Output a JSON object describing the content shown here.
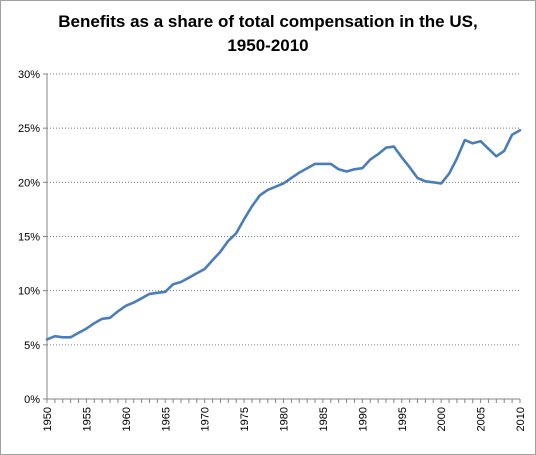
{
  "chart_data": {
    "type": "line",
    "title_lines": [
      "Benefits as a share of total compensation in the US,",
      "1950-2010"
    ],
    "xlabel": "",
    "ylabel": "",
    "xlim": [
      1950,
      2010
    ],
    "ylim": [
      0,
      30
    ],
    "y_ticks": [
      0,
      5,
      10,
      15,
      20,
      25,
      30
    ],
    "y_tick_labels": [
      "0%",
      "5%",
      "10%",
      "15%",
      "20%",
      "25%",
      "30%"
    ],
    "x_ticks": [
      1950,
      1955,
      1960,
      1965,
      1970,
      1975,
      1980,
      1985,
      1990,
      1995,
      2000,
      2005,
      2010
    ],
    "x_tick_labels": [
      "1950",
      "1955",
      "1960",
      "1965",
      "1970",
      "1975",
      "1980",
      "1985",
      "1990",
      "1995",
      "2000",
      "2005",
      "2010"
    ],
    "grid": "horizontal dotted",
    "legend": "none",
    "line_color": "#4a7ebb",
    "series": [
      {
        "x": [
          1950,
          1951,
          1952,
          1953,
          1954,
          1955,
          1956,
          1957,
          1958,
          1959,
          1960,
          1961,
          1962,
          1963,
          1964,
          1965,
          1966,
          1967,
          1968,
          1969,
          1970,
          1971,
          1972,
          1973,
          1974,
          1975,
          1976,
          1977,
          1978,
          1979,
          1980,
          1981,
          1982,
          1983,
          1984,
          1985,
          1986,
          1987,
          1988,
          1989,
          1990,
          1991,
          1992,
          1993,
          1994,
          1995,
          1996,
          1997,
          1998,
          1999,
          2000,
          2001,
          2002,
          2003,
          2004,
          2005,
          2006,
          2007,
          2008,
          2009,
          2010
        ],
        "y": [
          5.5,
          5.8,
          5.7,
          5.7,
          6.1,
          6.5,
          7.0,
          7.4,
          7.5,
          8.1,
          8.6,
          8.9,
          9.3,
          9.7,
          9.8,
          9.9,
          10.6,
          10.8,
          11.2,
          11.6,
          12.0,
          12.8,
          13.6,
          14.6,
          15.3,
          16.6,
          17.8,
          18.8,
          19.3,
          19.6,
          19.9,
          20.4,
          20.9,
          21.3,
          21.7,
          21.7,
          21.7,
          21.2,
          21.0,
          21.2,
          21.3,
          22.1,
          22.6,
          23.2,
          23.3,
          22.3,
          21.4,
          20.4,
          20.1,
          20.0,
          19.9,
          20.8,
          22.2,
          23.9,
          23.6,
          23.8,
          23.1,
          22.4,
          22.9,
          24.4,
          24.8
        ]
      }
    ]
  }
}
